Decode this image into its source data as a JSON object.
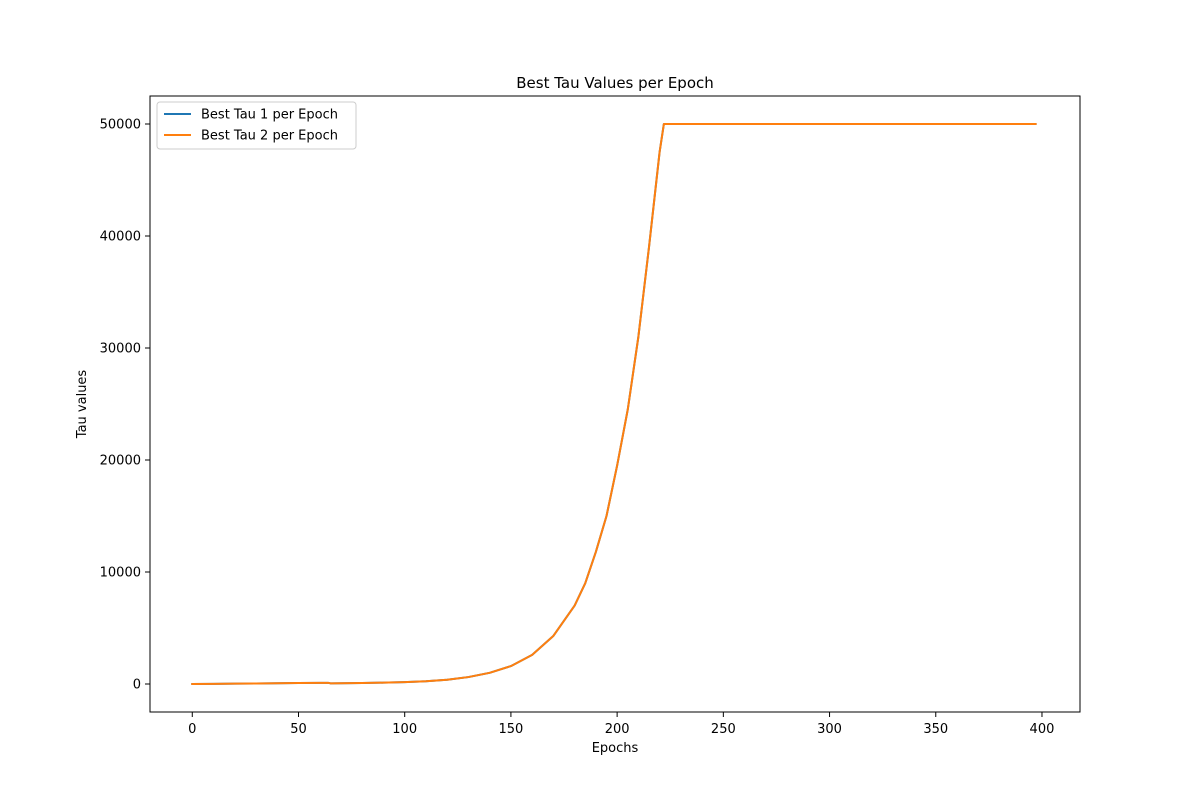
{
  "chart_data": {
    "type": "line",
    "title": "Best Tau Values per Epoch",
    "xlabel": "Epochs",
    "ylabel": "Tau values",
    "xlim": [
      -19.9,
      417.9
    ],
    "ylim": [
      -2500,
      52500
    ],
    "xticks": [
      0,
      50,
      100,
      150,
      200,
      250,
      300,
      350,
      400
    ],
    "yticks": [
      0,
      10000,
      20000,
      30000,
      40000,
      50000
    ],
    "grid": false,
    "legend_position": "top-left",
    "series": [
      {
        "name": "Best Tau 1 per Epoch",
        "color": "#1f77b4",
        "x": [
          0,
          10,
          20,
          30,
          40,
          50,
          60,
          64,
          65,
          70,
          80,
          90,
          100,
          110,
          120,
          130,
          140,
          150,
          160,
          170,
          180,
          185,
          190,
          195,
          200,
          205,
          210,
          215,
          220,
          222,
          230,
          250,
          300,
          350,
          397
        ],
        "y": [
          0,
          15,
          30,
          50,
          70,
          85,
          100,
          105,
          60,
          70,
          90,
          120,
          170,
          250,
          380,
          620,
          1000,
          1600,
          2600,
          4300,
          7000,
          9000,
          11800,
          15000,
          19500,
          24500,
          31000,
          39000,
          47500,
          50000,
          50000,
          50000,
          50000,
          50000,
          50000
        ]
      },
      {
        "name": "Best Tau 2 per Epoch",
        "color": "#ff7f0e",
        "x": [
          0,
          10,
          20,
          30,
          40,
          50,
          60,
          64,
          65,
          70,
          80,
          90,
          100,
          110,
          120,
          130,
          140,
          150,
          160,
          170,
          180,
          185,
          190,
          195,
          200,
          205,
          210,
          215,
          220,
          222,
          230,
          250,
          300,
          350,
          397
        ],
        "y": [
          0,
          15,
          30,
          50,
          70,
          85,
          100,
          105,
          60,
          70,
          90,
          120,
          170,
          250,
          380,
          620,
          1000,
          1600,
          2600,
          4300,
          7000,
          9000,
          11800,
          15000,
          19500,
          24500,
          31000,
          39000,
          47500,
          50000,
          50000,
          50000,
          50000,
          50000,
          50000
        ]
      }
    ]
  }
}
